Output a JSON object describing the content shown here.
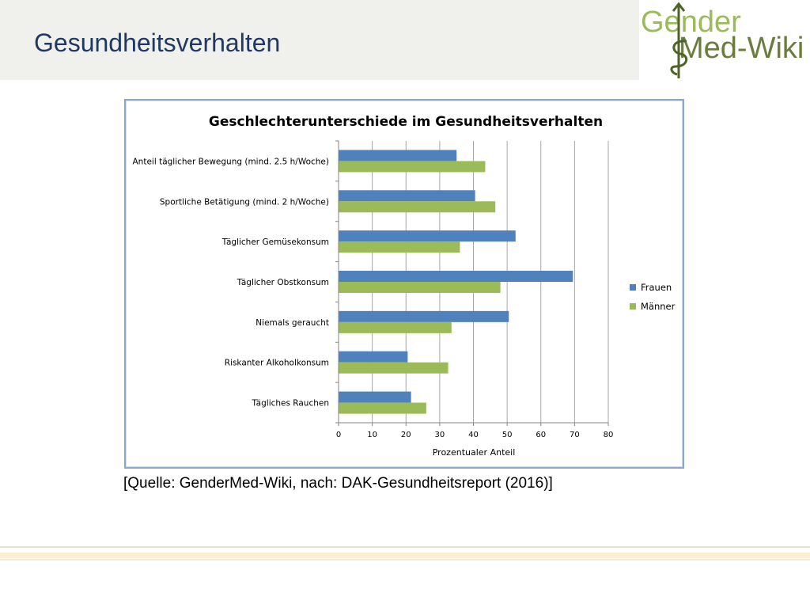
{
  "slide": {
    "title": "Gesundheitsverhalten",
    "source": "[Quelle: GenderMed-Wiki, nach: DAK-Gesundheitsreport (2016)]"
  },
  "logo": {
    "line1": "Gender",
    "line2": "Med-Wiki",
    "icon": "caduceus-icon",
    "color_light": "#9bbb59",
    "color_dark": "#4f6228"
  },
  "colors": {
    "title": "#1f3864",
    "frauen": "#4f81bd",
    "maenner": "#9bbb59",
    "gridline": "#a6a6a6"
  },
  "chart_data": {
    "type": "bar",
    "orientation": "horizontal",
    "title": "Geschlechterunterschiede im Gesundheitsverhalten",
    "xlabel": "Prozentualer Anteil",
    "ylabel": "",
    "categories": [
      "Anteil täglicher Bewegung (mind. 2.5 h/Woche)",
      "Sportliche Betätigung (mind. 2 h/Woche)",
      "Täglicher Gemüsekonsum",
      "Täglicher Obstkonsum",
      "Niemals geraucht",
      "Riskanter Alkoholkonsum",
      "Tägliches Rauchen"
    ],
    "series": [
      {
        "name": "Frauen",
        "color": "#4f81bd",
        "values": [
          35,
          40.5,
          52.5,
          69.5,
          50.5,
          20.5,
          21.5
        ]
      },
      {
        "name": "Männer",
        "color": "#9bbb59",
        "values": [
          43.5,
          46.5,
          36,
          48,
          33.5,
          32.5,
          26
        ]
      }
    ],
    "xlim": [
      0,
      80
    ],
    "xticks": [
      "0",
      "10",
      "20",
      "30",
      "40",
      "50",
      "60",
      "70",
      "80"
    ],
    "grid": "vertical",
    "legend": "right"
  }
}
